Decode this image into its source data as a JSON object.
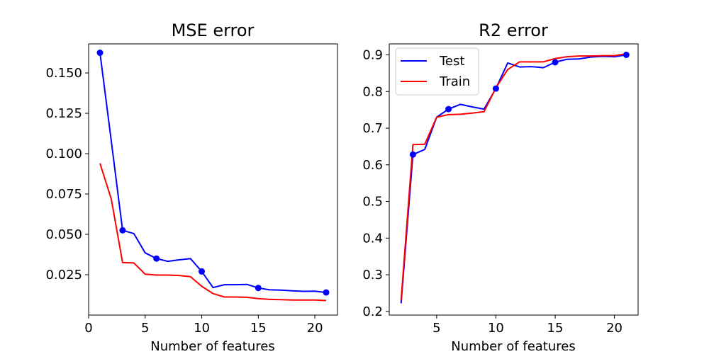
{
  "chart_data": [
    {
      "type": "line",
      "title": "MSE error",
      "xlabel": "Number of features",
      "ylabel": "",
      "xlim": [
        0,
        22
      ],
      "ylim": [
        0.0,
        0.168
      ],
      "xticks": [
        0,
        5,
        10,
        15,
        20
      ],
      "xtick_labels": [
        "0",
        "5",
        "10",
        "15",
        "20"
      ],
      "yticks": [
        0.025,
        0.05,
        0.075,
        0.1,
        0.125,
        0.15
      ],
      "ytick_labels": [
        "0.025",
        "0.050",
        "0.075",
        "0.100",
        "0.125",
        "0.150"
      ],
      "grid": false,
      "legend": null,
      "series": [
        {
          "color": "#0000ff",
          "x": [
            1,
            2,
            3,
            4,
            5,
            6,
            7,
            8,
            9,
            10,
            11,
            12,
            13,
            14,
            15,
            16,
            17,
            18,
            19,
            20,
            21
          ],
          "y": [
            0.1625,
            0.108,
            0.0525,
            0.0505,
            0.0385,
            0.035,
            0.0333,
            0.0342,
            0.035,
            0.027,
            0.017,
            0.0188,
            0.0188,
            0.019,
            0.0168,
            0.0156,
            0.0155,
            0.015,
            0.0147,
            0.0148,
            0.014
          ],
          "marker_x": [
            1,
            3,
            6,
            10,
            15,
            21
          ],
          "marker_y": [
            0.1625,
            0.0525,
            0.035,
            0.027,
            0.0168,
            0.014
          ]
        },
        {
          "color": "#ff0000",
          "x": [
            1,
            2,
            3,
            4,
            5,
            6,
            7,
            8,
            9,
            10,
            11,
            12,
            13,
            14,
            15,
            16,
            17,
            18,
            19,
            20,
            21
          ],
          "y": [
            0.094,
            0.072,
            0.0325,
            0.0323,
            0.0253,
            0.0248,
            0.0248,
            0.0245,
            0.0238,
            0.0178,
            0.0133,
            0.0112,
            0.0112,
            0.011,
            0.0102,
            0.0097,
            0.0095,
            0.0093,
            0.0093,
            0.0093,
            0.009
          ]
        }
      ]
    },
    {
      "type": "line",
      "title": "R2 error",
      "xlabel": "Number of features",
      "ylabel": "",
      "xlim": [
        1,
        22
      ],
      "ylim": [
        0.19,
        0.93
      ],
      "xticks": [
        5,
        10,
        15,
        20
      ],
      "xtick_labels": [
        "5",
        "10",
        "15",
        "20"
      ],
      "yticks": [
        0.2,
        0.3,
        0.4,
        0.5,
        0.6,
        0.7,
        0.8,
        0.9
      ],
      "ytick_labels": [
        "0.2",
        "0.3",
        "0.4",
        "0.5",
        "0.6",
        "0.7",
        "0.8",
        "0.9"
      ],
      "grid": false,
      "legend": "top-left",
      "series": [
        {
          "name": "Test",
          "color": "#0000ff",
          "x": [
            2,
            3,
            4,
            5,
            6,
            7,
            8,
            9,
            10,
            11,
            12,
            13,
            14,
            15,
            16,
            17,
            18,
            19,
            20,
            21
          ],
          "y": [
            0.222,
            0.628,
            0.642,
            0.73,
            0.752,
            0.765,
            0.758,
            0.752,
            0.808,
            0.878,
            0.867,
            0.868,
            0.865,
            0.88,
            0.888,
            0.889,
            0.894,
            0.896,
            0.895,
            0.9
          ],
          "marker_x": [
            3,
            6,
            10,
            15,
            21
          ],
          "marker_y": [
            0.628,
            0.752,
            0.808,
            0.88,
            0.9
          ]
        },
        {
          "name": "Train",
          "color": "#ff0000",
          "x": [
            2,
            3,
            4,
            5,
            6,
            7,
            8,
            9,
            10,
            11,
            12,
            13,
            14,
            15,
            16,
            17,
            18,
            19,
            20,
            21
          ],
          "y": [
            0.23,
            0.655,
            0.656,
            0.73,
            0.737,
            0.738,
            0.741,
            0.745,
            0.81,
            0.86,
            0.881,
            0.881,
            0.881,
            0.89,
            0.895,
            0.897,
            0.897,
            0.898,
            0.898,
            0.903
          ]
        }
      ]
    }
  ]
}
